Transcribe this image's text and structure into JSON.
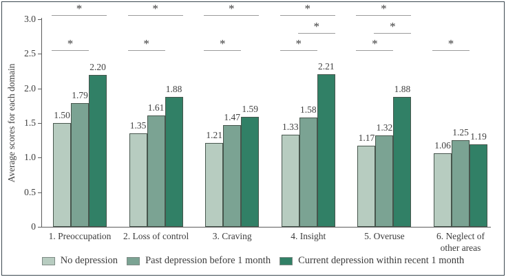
{
  "figure": {
    "type_label": "grouped bar chart"
  },
  "chart_data": {
    "type": "bar",
    "title": "",
    "xlabel": "",
    "ylabel": "Average scores for each domain",
    "ylim": [
      0,
      3.0
    ],
    "yticks": [
      0,
      0.5,
      1.0,
      1.5,
      2.0,
      2.5,
      3.0
    ],
    "ytick_labels": [
      "0",
      "0.5",
      "1.0",
      "1.5",
      "2.0",
      "2.5",
      "3.0"
    ],
    "grid": false,
    "legend_position": "bottom",
    "categories": [
      "1. Preoccupation",
      "2. Loss of control",
      "3. Craving",
      "4. Insight",
      "5. Overuse",
      "6. Neglect of\nother areas"
    ],
    "series": [
      {
        "name": "No depression",
        "color": "#b7ccc0",
        "values": [
          1.5,
          1.35,
          1.21,
          1.33,
          1.17,
          1.06
        ]
      },
      {
        "name": "Past depression before 1 month",
        "color": "#7ba393",
        "values": [
          1.79,
          1.61,
          1.47,
          1.58,
          1.32,
          1.25
        ]
      },
      {
        "name": "Current depression within recent 1 month",
        "color": "#318066",
        "values": [
          2.2,
          1.88,
          1.59,
          2.21,
          1.88,
          1.19
        ]
      }
    ],
    "significance_marker": "*",
    "significance_brackets": [
      {
        "group": 0,
        "from_bar": 0,
        "to_bar": 2,
        "level": "top",
        "label": "*"
      },
      {
        "group": 0,
        "from_bar": 0,
        "to_bar": 1,
        "level": "low",
        "label": "*"
      },
      {
        "group": 1,
        "from_bar": 0,
        "to_bar": 2,
        "level": "top",
        "label": "*"
      },
      {
        "group": 1,
        "from_bar": 0,
        "to_bar": 1,
        "level": "low",
        "label": "*"
      },
      {
        "group": 2,
        "from_bar": 0,
        "to_bar": 2,
        "level": "top",
        "label": "*"
      },
      {
        "group": 2,
        "from_bar": 0,
        "to_bar": 1,
        "level": "low",
        "label": "*"
      },
      {
        "group": 3,
        "from_bar": 0,
        "to_bar": 2,
        "level": "top",
        "label": "*"
      },
      {
        "group": 3,
        "from_bar": 1,
        "to_bar": 2,
        "level": "mid",
        "label": "*"
      },
      {
        "group": 3,
        "from_bar": 0,
        "to_bar": 1,
        "level": "low",
        "label": "*"
      },
      {
        "group": 4,
        "from_bar": 0,
        "to_bar": 2,
        "level": "top",
        "label": "*"
      },
      {
        "group": 4,
        "from_bar": 1,
        "to_bar": 2,
        "level": "mid",
        "label": "*"
      },
      {
        "group": 4,
        "from_bar": 0,
        "to_bar": 1,
        "level": "low",
        "label": "*"
      },
      {
        "group": 5,
        "from_bar": 0,
        "to_bar": 1,
        "level": "low",
        "label": "*"
      }
    ]
  }
}
